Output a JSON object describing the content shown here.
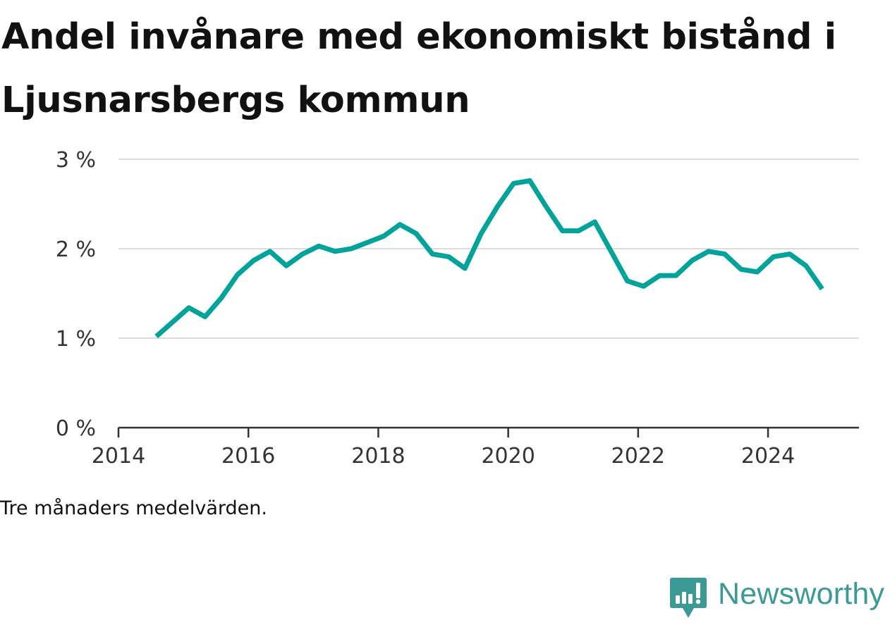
{
  "title": "Andel invånare med ekonomiskt bistånd i Ljusnarsbergs kommun",
  "note": "Tre månaders medelvärden.",
  "brand": {
    "name": "Newsworthy",
    "color": "#3c9a95"
  },
  "chart_data": {
    "type": "line",
    "title": "Andel invånare med ekonomiskt bistånd i Ljusnarsbergs kommun",
    "xlabel": "",
    "ylabel": "",
    "xlim": [
      2014,
      2025.4
    ],
    "ylim": [
      0,
      3
    ],
    "grid": true,
    "legend": "none",
    "line_color": "#00a39a",
    "x_ticks": [
      {
        "value": 2014,
        "label": "2014"
      },
      {
        "value": 2016,
        "label": "2016"
      },
      {
        "value": 2018,
        "label": "2018"
      },
      {
        "value": 2020,
        "label": "2020"
      },
      {
        "value": 2022,
        "label": "2022"
      },
      {
        "value": 2024,
        "label": "2024"
      }
    ],
    "y_ticks": [
      {
        "value": 0,
        "label": "0 %"
      },
      {
        "value": 1,
        "label": "1 %"
      },
      {
        "value": 2,
        "label": "2 %"
      },
      {
        "value": 3,
        "label": "3 %"
      }
    ],
    "series": [
      {
        "x": [
          "2014-08",
          "2014-11",
          "2015-02",
          "2015-05",
          "2015-08",
          "2015-11",
          "2016-02",
          "2016-05",
          "2016-08",
          "2016-11",
          "2017-02",
          "2017-05",
          "2017-08",
          "2017-11",
          "2018-02",
          "2018-05",
          "2018-08",
          "2018-11",
          "2019-02",
          "2019-05",
          "2019-08",
          "2019-11",
          "2020-02",
          "2020-05",
          "2020-08",
          "2020-11",
          "2021-02",
          "2021-05",
          "2021-08",
          "2021-11",
          "2022-02",
          "2022-05",
          "2022-08",
          "2022-11",
          "2023-02",
          "2023-05",
          "2023-08",
          "2023-11",
          "2024-02",
          "2024-05",
          "2024-08",
          "2024-11"
        ],
        "values": [
          1.02,
          1.18,
          1.34,
          1.24,
          1.45,
          1.71,
          1.87,
          1.97,
          1.81,
          1.94,
          2.03,
          1.97,
          2.0,
          2.07,
          2.14,
          2.27,
          2.17,
          1.94,
          1.91,
          1.78,
          2.17,
          2.47,
          2.73,
          2.76,
          2.47,
          2.2,
          2.2,
          2.3,
          1.97,
          1.64,
          1.58,
          1.7,
          1.7,
          1.87,
          1.97,
          1.94,
          1.77,
          1.74,
          1.91,
          1.94,
          1.81,
          1.55
        ]
      }
    ]
  }
}
